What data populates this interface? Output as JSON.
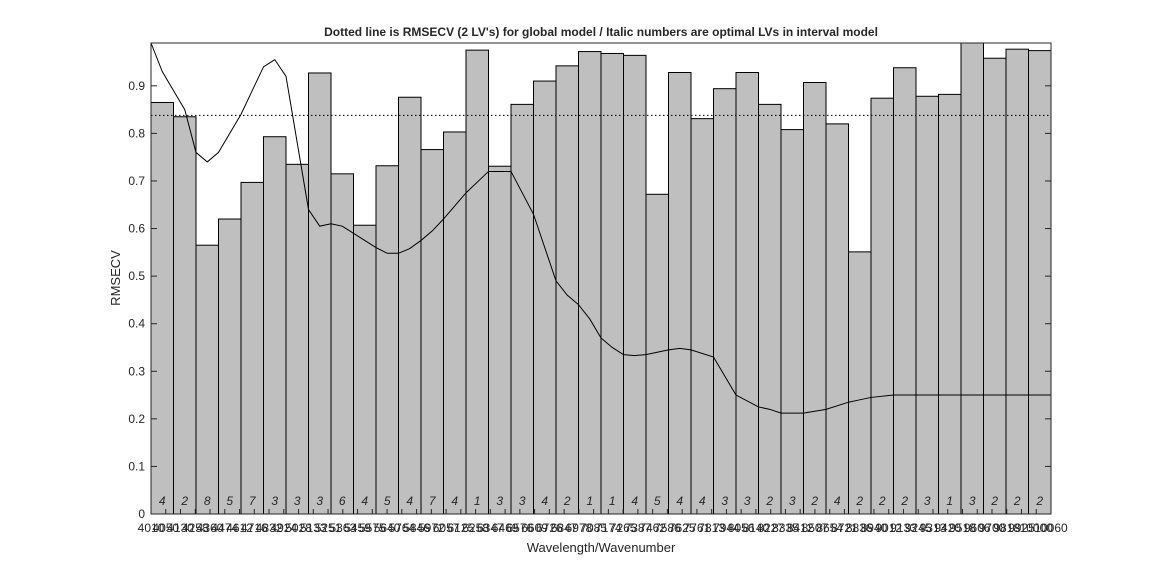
{
  "chart_data": {
    "type": "bar",
    "title": "Dotted line is RMSECV (2 LV's) for global model / Italic numbers are optimal LVs in interval model",
    "xlabel": "Wavelength/Wavenumber",
    "ylabel": "RMSECV",
    "ylim": [
      0,
      0.99
    ],
    "yticks": [
      0,
      0.1,
      0.2,
      0.3,
      0.4,
      0.5,
      0.6,
      0.7,
      0.8,
      0.9
    ],
    "ytick_labels": [
      "0",
      "0.1",
      "0.2",
      "0.3",
      "0.4",
      "0.5",
      "0.6",
      "0.7",
      "0.8",
      "0.9"
    ],
    "xtick_labels": [
      "4010",
      "4050",
      "4130",
      "4258",
      "4360",
      "4474",
      "4612",
      "4716",
      "4832",
      "4924",
      "5028",
      "5133",
      "5251",
      "5363",
      "5459",
      "5575",
      "5640",
      "5764",
      "5846",
      "5972",
      "6057",
      "6125",
      "6258",
      "6347",
      "6469",
      "6576",
      "6609",
      "6726",
      "6847",
      "6978",
      "7085",
      "7174",
      "7265",
      "7387",
      "7462",
      "7586",
      "7625",
      "7761",
      "7813",
      "7944",
      "8056",
      "8140",
      "8227",
      "8335",
      "8412",
      "8507",
      "8654",
      "8721",
      "8836",
      "8940",
      "9012",
      "9133",
      "9245",
      "9313",
      "9420",
      "9518",
      "9606",
      "9700",
      "9818",
      "9925",
      "10000",
      "10060"
    ],
    "grid": false,
    "intervals": {
      "rmsecv": [
        0.865,
        0.835,
        0.565,
        0.62,
        0.697,
        0.793,
        0.735,
        0.927,
        0.715,
        0.607,
        0.732,
        0.876,
        0.766,
        0.803,
        0.975,
        0.731,
        0.861,
        0.91,
        0.942,
        0.972,
        0.968,
        0.964,
        0.672,
        0.928,
        0.831,
        0.894,
        0.928,
        0.861,
        0.808,
        0.907,
        0.82,
        0.551,
        0.874,
        0.938,
        0.878,
        0.882,
        0.99,
        0.958,
        0.977,
        0.974
      ],
      "optimal_lvs": [
        "4",
        "2",
        "8",
        "5",
        "7",
        "3",
        "3",
        "3",
        "6",
        "4",
        "5",
        "4",
        "7",
        "4",
        "1",
        "3",
        "3",
        "4",
        "2",
        "1",
        "1",
        "4",
        "5",
        "4",
        "4",
        "3",
        "3",
        "2",
        "3",
        "2",
        "4",
        "2",
        "2",
        "2",
        "3",
        "1",
        "3",
        "2",
        "2",
        "2"
      ]
    },
    "global_rmsecv": 0.838,
    "spectrum_curve": {
      "x_interval": [
        0,
        0.5,
        1,
        1.5,
        2,
        2.5,
        3,
        3.5,
        4,
        4.5,
        5,
        5.5,
        6,
        6.5,
        7,
        7.5,
        8,
        8.5,
        9,
        9.5,
        10,
        10.5,
        11,
        11.5,
        12,
        12.5,
        13,
        14,
        15,
        16,
        17,
        18,
        18.5,
        19,
        19.5,
        20,
        20.5,
        21,
        21.5,
        22,
        22.5,
        23,
        23.5,
        24,
        25,
        26,
        27,
        27.5,
        28,
        29,
        30,
        31,
        31.5,
        32,
        33,
        34,
        35,
        36,
        37,
        38,
        39,
        40
      ],
      "y": [
        0.99,
        0.93,
        0.89,
        0.85,
        0.76,
        0.74,
        0.76,
        0.8,
        0.84,
        0.89,
        0.94,
        0.955,
        0.92,
        0.78,
        0.64,
        0.605,
        0.61,
        0.605,
        0.59,
        0.575,
        0.56,
        0.548,
        0.548,
        0.558,
        0.575,
        0.595,
        0.62,
        0.675,
        0.72,
        0.72,
        0.63,
        0.49,
        0.46,
        0.44,
        0.41,
        0.37,
        0.35,
        0.335,
        0.333,
        0.335,
        0.34,
        0.345,
        0.348,
        0.345,
        0.33,
        0.25,
        0.225,
        0.22,
        0.212,
        0.212,
        0.22,
        0.235,
        0.24,
        0.245,
        0.25,
        0.25,
        0.25,
        0.25,
        0.25,
        0.25,
        0.25,
        0.25
      ]
    }
  }
}
